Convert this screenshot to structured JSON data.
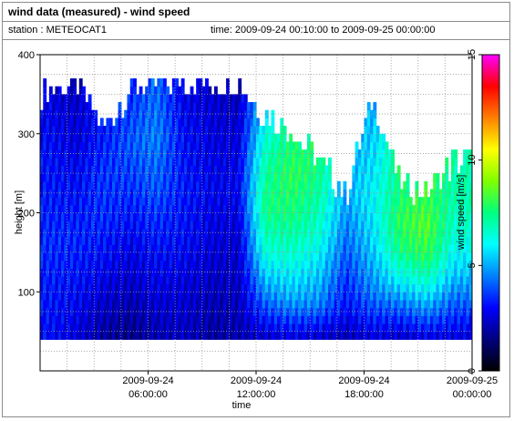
{
  "header": {
    "title": "wind data (measured) - wind speed",
    "station_label": "station : METEOCAT1",
    "time_label": "time: 2009-09-24 00:10:00 to 2009-09-25 00:00:00"
  },
  "colorbar": {
    "stops": [
      "#000000",
      "#00007f",
      "#0000ff",
      "#0080ff",
      "#00ffff",
      "#00ff80",
      "#80ff00",
      "#ffff00",
      "#ff8000",
      "#ff0000",
      "#ff00ff"
    ]
  },
  "chart_data": {
    "type": "heatmap",
    "title": "",
    "xlabel": "time",
    "ylabel": "height [m]",
    "colorbar_label": "wind speed [m/s]",
    "x_unit": "hours since 2009-09-24 00:00:00",
    "xlim": [
      0,
      24
    ],
    "ylim": [
      0,
      400
    ],
    "zlim": [
      0,
      15
    ],
    "x_ticks": [
      {
        "value": 6,
        "date": "2009-09-24",
        "time": "06:00:00"
      },
      {
        "value": 12,
        "date": "2009-09-24",
        "time": "12:00:00"
      },
      {
        "value": 18,
        "date": "2009-09-24",
        "time": "18:00:00"
      },
      {
        "value": 24,
        "date": "2009-09-25",
        "time": "00:00:00"
      }
    ],
    "y_ticks": [
      100,
      200,
      300,
      400
    ],
    "z_ticks": [
      0,
      5,
      10,
      15
    ],
    "grid": true,
    "data_height_range": [
      40,
      370
    ],
    "profiles": [
      {
        "t": 0.5,
        "top": 350,
        "speed": [
          3.0,
          3.2,
          3.5,
          3.2,
          3.0,
          2.6
        ]
      },
      {
        "t": 2.0,
        "top": 360,
        "speed": [
          2.5,
          3.0,
          3.4,
          3.0,
          2.5,
          2.2
        ]
      },
      {
        "t": 3.5,
        "top": 300,
        "speed": [
          1.8,
          2.4,
          3.0,
          3.5,
          3.6,
          3.2
        ]
      },
      {
        "t": 5.0,
        "top": 350,
        "speed": [
          1.5,
          2.2,
          2.8,
          3.5,
          4.0,
          3.5
        ]
      },
      {
        "t": 6.5,
        "top": 360,
        "speed": [
          2.0,
          2.6,
          3.2,
          4.0,
          4.5,
          4.2
        ]
      },
      {
        "t": 8.0,
        "top": 360,
        "speed": [
          2.2,
          2.5,
          3.0,
          3.2,
          3.0,
          2.6
        ]
      },
      {
        "t": 9.5,
        "top": 360,
        "speed": [
          1.8,
          2.2,
          2.6,
          2.8,
          2.6,
          2.4
        ]
      },
      {
        "t": 11.0,
        "top": 360,
        "speed": [
          2.0,
          2.2,
          2.4,
          2.8,
          2.5,
          2.0
        ]
      },
      {
        "t": 12.5,
        "top": 320,
        "speed": [
          2.2,
          4.5,
          6.5,
          7.5,
          7.0,
          6.0
        ]
      },
      {
        "t": 14.0,
        "top": 300,
        "speed": [
          2.5,
          5.0,
          6.5,
          7.5,
          8.0,
          7.5
        ]
      },
      {
        "t": 15.5,
        "top": 260,
        "speed": [
          2.2,
          4.5,
          5.5,
          6.5,
          7.0,
          7.5
        ]
      },
      {
        "t": 17.0,
        "top": 220,
        "speed": [
          2.0,
          3.0,
          3.5,
          4.0,
          4.5,
          5.0
        ]
      },
      {
        "t": 18.5,
        "top": 340,
        "speed": [
          2.5,
          4.5,
          5.5,
          6.0,
          5.5,
          5.0
        ]
      },
      {
        "t": 20.0,
        "top": 230,
        "speed": [
          2.2,
          4.0,
          6.0,
          7.5,
          8.0,
          7.5
        ]
      },
      {
        "t": 21.5,
        "top": 220,
        "speed": [
          2.5,
          4.5,
          6.5,
          8.0,
          8.5,
          8.0
        ]
      },
      {
        "t": 23.0,
        "top": 260,
        "speed": [
          2.5,
          4.0,
          5.5,
          6.5,
          7.0,
          7.0
        ]
      }
    ]
  }
}
